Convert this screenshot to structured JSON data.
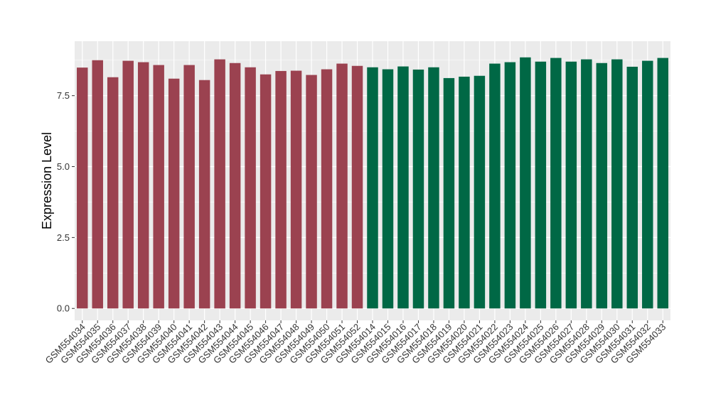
{
  "chart_data": {
    "type": "bar",
    "title": "",
    "xlabel": "",
    "ylabel": "Expression Level",
    "ylim": [
      -0.42,
      9.42
    ],
    "yticks": [
      0.0,
      2.5,
      5.0,
      7.5
    ],
    "ytick_labels": [
      "0.0",
      "2.5",
      "5.0",
      "7.5"
    ],
    "grid": true,
    "background": "#ebebeb",
    "categories": [
      "GSM554034",
      "GSM554035",
      "GSM554036",
      "GSM554037",
      "GSM554038",
      "GSM554039",
      "GSM554040",
      "GSM554041",
      "GSM554042",
      "GSM554043",
      "GSM554044",
      "GSM554045",
      "GSM554046",
      "GSM554047",
      "GSM554048",
      "GSM554049",
      "GSM554050",
      "GSM554051",
      "GSM554052",
      "GSM554014",
      "GSM554015",
      "GSM554016",
      "GSM554017",
      "GSM554018",
      "GSM554019",
      "GSM554020",
      "GSM554021",
      "GSM554022",
      "GSM554023",
      "GSM554024",
      "GSM554025",
      "GSM554026",
      "GSM554027",
      "GSM554028",
      "GSM554029",
      "GSM554030",
      "GSM554031",
      "GSM554032",
      "GSM554033"
    ],
    "values": [
      8.49,
      8.75,
      8.15,
      8.73,
      8.68,
      8.58,
      8.1,
      8.58,
      8.05,
      8.78,
      8.65,
      8.5,
      8.25,
      8.37,
      8.38,
      8.23,
      8.43,
      8.63,
      8.55,
      8.5,
      8.43,
      8.53,
      8.42,
      8.5,
      8.12,
      8.17,
      8.2,
      8.63,
      8.68,
      8.85,
      8.7,
      8.83,
      8.7,
      8.78,
      8.65,
      8.78,
      8.52,
      8.73,
      8.83
    ],
    "group_colors": [
      "#9b4250",
      "#006845"
    ],
    "group_sizes": [
      19,
      20
    ]
  }
}
